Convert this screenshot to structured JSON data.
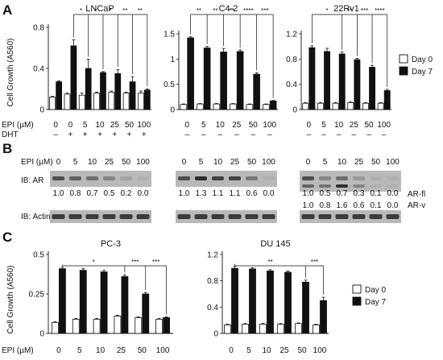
{
  "panel_letters": [
    "A",
    "B",
    "C"
  ],
  "conditions_label": "EPI (µM)",
  "dht_label": "DHT",
  "y_axis_label": "Cell Growth (A560)",
  "legend": {
    "day0": "Day 0",
    "day7": "Day 7"
  },
  "colors": {
    "day0": "#ffffff",
    "day7": "#111111",
    "blot_bg": "#b9b9b9",
    "band": "#2e2e2e"
  },
  "chart_data": [
    {
      "type": "bar",
      "title": "LNCaP",
      "ylabel": "Cell Growth (A560)",
      "ylim": [
        0,
        0.8
      ],
      "yticks": [
        "0",
        "0.4",
        "0.8"
      ],
      "ytick_values": [
        0,
        0.4,
        0.8
      ],
      "categories": [
        "0",
        "0",
        "5",
        "10",
        "25",
        "50",
        "100"
      ],
      "dht": [
        "–",
        "+",
        "+",
        "+",
        "+",
        "+",
        "+"
      ],
      "series": [
        {
          "name": "Day 0",
          "values": [
            0.12,
            0.15,
            0.14,
            0.16,
            0.17,
            0.16,
            0.16
          ],
          "err": [
            0.01,
            0.01,
            0.02,
            0.01,
            0.01,
            0.01,
            0.02
          ]
        },
        {
          "name": "Day 7",
          "values": [
            0.27,
            0.62,
            0.4,
            0.36,
            0.35,
            0.27,
            0.19
          ],
          "err": [
            0.01,
            0.06,
            0.09,
            0.01,
            0.04,
            0.05,
            0.01
          ]
        }
      ],
      "sig": [
        "*",
        "*",
        "*",
        "**",
        "**"
      ]
    },
    {
      "type": "bar",
      "title": "C4-2",
      "ylim": [
        0,
        1.5
      ],
      "yticks": [
        "0",
        "0.5",
        "1",
        "1.5"
      ],
      "ytick_values": [
        0,
        0.5,
        1,
        1.5
      ],
      "categories": [
        "0",
        "5",
        "10",
        "25",
        "50",
        "100"
      ],
      "dht": [
        "–",
        "–",
        "–",
        "–",
        "–",
        "–"
      ],
      "series": [
        {
          "name": "Day 0",
          "values": [
            0.1,
            0.11,
            0.11,
            0.11,
            0.1,
            0.1
          ],
          "err": [
            0.01,
            0.01,
            0.01,
            0.01,
            0.01,
            0.01
          ]
        },
        {
          "name": "Day 7",
          "values": [
            1.42,
            1.22,
            1.14,
            1.15,
            0.7,
            0.17
          ],
          "err": [
            0.02,
            0.03,
            0.07,
            0.03,
            0.03,
            0.01
          ]
        }
      ],
      "sig": [
        "**",
        "**",
        "**",
        "****",
        "***"
      ]
    },
    {
      "type": "bar",
      "title": "22Rv1",
      "ylim": [
        0,
        1.2
      ],
      "yticks": [
        "0",
        "0.4",
        "0.8",
        "1.2"
      ],
      "ytick_values": [
        0,
        0.4,
        0.8,
        1.2
      ],
      "categories": [
        "0",
        "5",
        "10",
        "25",
        "50",
        "100"
      ],
      "dht": [
        "–",
        "–",
        "–",
        "–",
        "–",
        "–"
      ],
      "series": [
        {
          "name": "Day 0",
          "values": [
            0.1,
            0.1,
            0.1,
            0.11,
            0.1,
            0.1
          ],
          "err": [
            0.01,
            0.01,
            0.01,
            0.01,
            0.01,
            0.01
          ]
        },
        {
          "name": "Day 7",
          "values": [
            0.98,
            0.92,
            0.88,
            0.79,
            0.67,
            0.3
          ],
          "err": [
            0.03,
            0.05,
            0.03,
            0.02,
            0.03,
            0.02
          ]
        }
      ],
      "sig": [
        "*",
        "**",
        "***",
        "****"
      ]
    },
    {
      "type": "bar",
      "title": "PC-3",
      "ylabel": "Cell Growth (A560)",
      "ylim": [
        0,
        0.5
      ],
      "yticks": [
        "0",
        "0.25",
        "0.5"
      ],
      "ytick_values": [
        0,
        0.25,
        0.5
      ],
      "categories": [
        "0",
        "5",
        "10",
        "25",
        "50",
        "100"
      ],
      "series": [
        {
          "name": "Day 0",
          "values": [
            0.07,
            0.09,
            0.09,
            0.11,
            0.1,
            0.09
          ],
          "err": [
            0.005,
            0.005,
            0.005,
            0.005,
            0.005,
            0.005
          ]
        },
        {
          "name": "Day 7",
          "values": [
            0.41,
            0.4,
            0.39,
            0.36,
            0.25,
            0.1
          ],
          "err": [
            0.01,
            0.01,
            0.01,
            0.01,
            0.01,
            0.005
          ]
        }
      ],
      "sig": [
        "*",
        "***",
        "***"
      ]
    },
    {
      "type": "bar",
      "title": "DU 145",
      "ylim": [
        0,
        1.2
      ],
      "yticks": [
        "0",
        "0.4",
        "0.8",
        "1.2"
      ],
      "ytick_values": [
        0,
        0.4,
        0.8,
        1.2
      ],
      "categories": [
        "0",
        "5",
        "10",
        "25",
        "50",
        "100"
      ],
      "series": [
        {
          "name": "Day 0",
          "values": [
            0.13,
            0.14,
            0.14,
            0.14,
            0.15,
            0.13
          ],
          "err": [
            0.01,
            0.01,
            0.01,
            0.01,
            0.01,
            0.01
          ]
        },
        {
          "name": "Day 7",
          "values": [
            0.99,
            0.98,
            0.95,
            0.93,
            0.78,
            0.5
          ],
          "err": [
            0.03,
            0.02,
            0.02,
            0.02,
            0.03,
            0.05
          ]
        }
      ],
      "sig": [
        "**",
        "***"
      ]
    }
  ],
  "blots": {
    "ib_ar": "IB: AR",
    "ib_actin": "IB: Actin",
    "ar_fl": "AR-fl",
    "ar_v": "AR-v",
    "doses": [
      "0",
      "5",
      "10",
      "25",
      "50",
      "100"
    ],
    "ar_values": [
      [
        "1.0",
        "0.8",
        "0.7",
        "0.5",
        "0.2",
        "0.0"
      ],
      [
        "1.0",
        "1.3",
        "1.1",
        "1.1",
        "0.6",
        "0.0"
      ],
      [
        "1.0",
        "0.5",
        "0.7",
        "0.3",
        "0.1",
        "0.0"
      ]
    ],
    "ar_v_values": [
      "1.0",
      "0.8",
      "1.6",
      "0.6",
      "0.1",
      "0.0"
    ],
    "ar_intensity": [
      [
        1.0,
        0.8,
        0.7,
        0.5,
        0.2,
        0.0
      ],
      [
        1.0,
        1.3,
        1.1,
        1.1,
        0.6,
        0.0
      ],
      [
        1.0,
        0.5,
        0.7,
        0.3,
        0.1,
        0.0
      ]
    ],
    "ar_v_intensity": [
      1.0,
      0.8,
      1.6,
      0.6,
      0.1,
      0.0
    ]
  }
}
